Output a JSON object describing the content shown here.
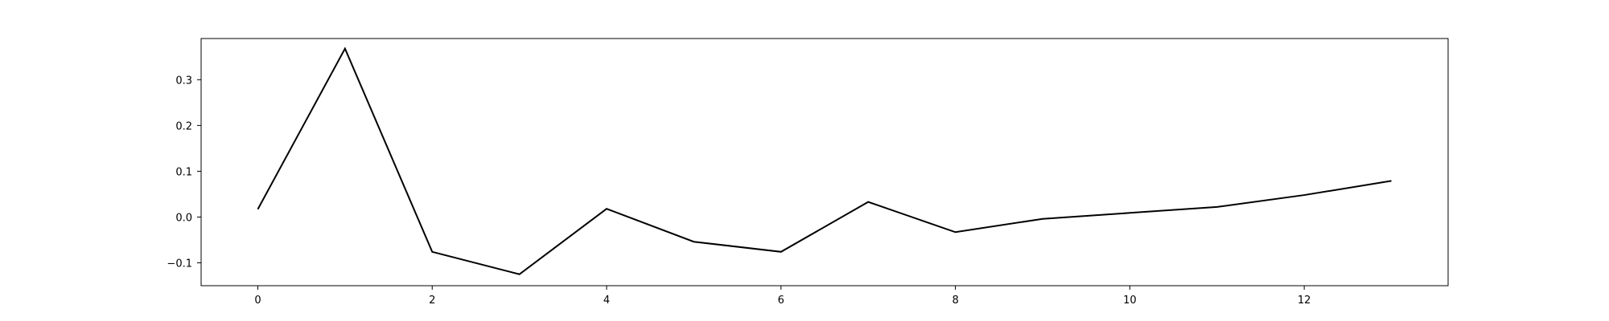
{
  "chart_data": {
    "type": "line",
    "title": "",
    "xlabel": "",
    "ylabel": "",
    "x": [
      0,
      1,
      2,
      3,
      4,
      5,
      6,
      7,
      8,
      9,
      10,
      11,
      12,
      13
    ],
    "series": [
      {
        "values": [
          0.017,
          0.368,
          -0.076,
          -0.125,
          0.018,
          -0.054,
          -0.076,
          0.033,
          -0.033,
          -0.004,
          0.009,
          0.022,
          0.048,
          0.079
        ],
        "color": "#000000"
      }
    ],
    "xlim": [
      -0.65,
      13.65
    ],
    "ylim": [
      -0.15,
      0.39
    ],
    "xticks": [
      0,
      2,
      4,
      6,
      8,
      10,
      12
    ],
    "xtick_labels": [
      "0",
      "2",
      "4",
      "6",
      "8",
      "10",
      "12"
    ],
    "yticks": [
      -0.1,
      0.0,
      0.1,
      0.2,
      0.3
    ],
    "ytick_labels": [
      "−0.1",
      "0.0",
      "0.1",
      "0.2",
      "0.3"
    ],
    "grid": false,
    "legend": "none"
  }
}
